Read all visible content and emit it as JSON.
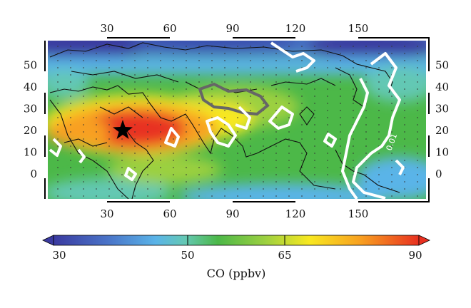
{
  "map": {
    "lon_ticks_top": [
      "30",
      "60",
      "90",
      "120",
      "150"
    ],
    "lon_ticks_bottom": [
      "30",
      "60",
      "90",
      "120",
      "150"
    ],
    "lat_ticks_left": [
      "50",
      "40",
      "30",
      "20",
      "10",
      "0"
    ],
    "lat_ticks_right": [
      "50",
      "40",
      "30",
      "20",
      "10",
      "0"
    ],
    "contour_label": "0.01",
    "star_marker": "star-icon"
  },
  "colorbar": {
    "title": "CO (ppbv)",
    "labels": [
      "30",
      "50",
      "65",
      "90"
    ],
    "colors": [
      "#3a3aa0",
      "#4a74c8",
      "#5ab4e8",
      "#64c8b4",
      "#4cb848",
      "#9cd040",
      "#f8e820",
      "#f8a020",
      "#e83020"
    ]
  },
  "chart_data": {
    "type": "heatmap",
    "title": "",
    "colorbar_label": "CO (ppbv)",
    "colorbar_ticks": [
      30,
      50,
      65,
      90
    ],
    "colorbar_range": [
      30,
      90
    ],
    "x_ticks": [
      30,
      60,
      90,
      120,
      150
    ],
    "y_ticks": [
      0,
      10,
      20,
      30,
      40,
      50
    ],
    "contour_label": "0.01"
  }
}
